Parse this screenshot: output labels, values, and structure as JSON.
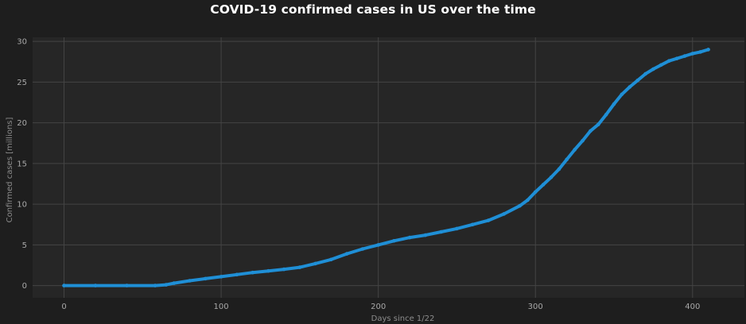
{
  "chart_data": {
    "type": "line",
    "title": "COVID-19 confirmed cases in US over the time",
    "xlabel": "Days since 1/22",
    "ylabel": "Confirmed cases [millions]",
    "xlim": [
      -20,
      433
    ],
    "ylim": [
      -1.5,
      30.5
    ],
    "xticks": [
      0,
      100,
      200,
      300,
      400
    ],
    "yticks": [
      0,
      5,
      10,
      15,
      20,
      25,
      30
    ],
    "grid": true,
    "series": [
      {
        "color": "#1f8fd6",
        "x": [
          0,
          20,
          40,
          58,
          65,
          70,
          80,
          90,
          100,
          110,
          120,
          130,
          140,
          150,
          160,
          170,
          180,
          190,
          200,
          210,
          220,
          230,
          240,
          250,
          260,
          270,
          280,
          290,
          295,
          300,
          305,
          310,
          315,
          320,
          325,
          330,
          335,
          340,
          345,
          350,
          355,
          360,
          365,
          370,
          375,
          380,
          385,
          390,
          395,
          400,
          405,
          410
        ],
        "y": [
          0,
          0,
          0,
          0,
          0.1,
          0.3,
          0.6,
          0.85,
          1.1,
          1.35,
          1.6,
          1.8,
          2.0,
          2.25,
          2.7,
          3.2,
          3.9,
          4.5,
          5.0,
          5.5,
          5.9,
          6.2,
          6.6,
          7.0,
          7.5,
          8.0,
          8.8,
          9.8,
          10.5,
          11.5,
          12.4,
          13.3,
          14.3,
          15.5,
          16.7,
          17.8,
          19.0,
          19.8,
          21.0,
          22.3,
          23.5,
          24.4,
          25.2,
          26.0,
          26.6,
          27.1,
          27.6,
          27.9,
          28.2,
          28.5,
          28.7,
          29.0
        ]
      }
    ]
  }
}
